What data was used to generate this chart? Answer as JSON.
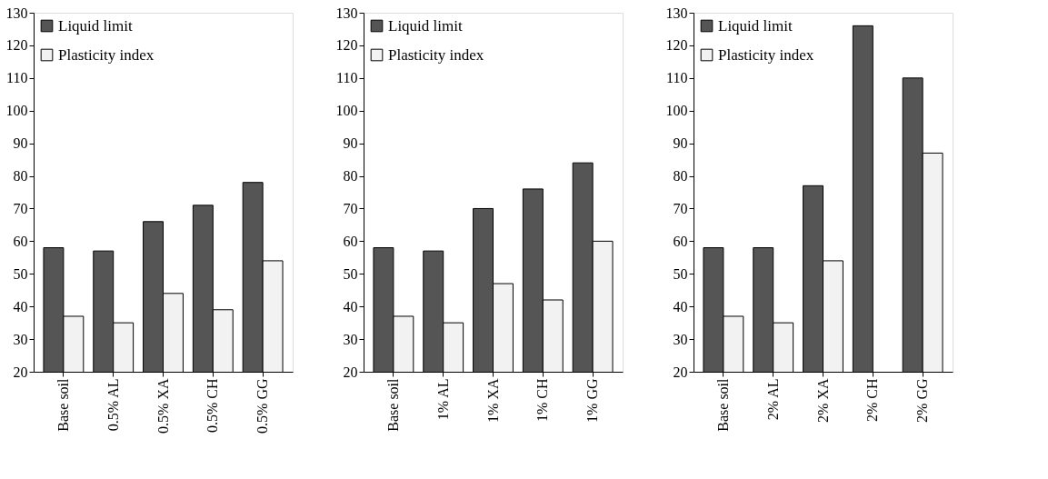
{
  "chart_data": [
    {
      "type": "bar",
      "categories": [
        "Base soil",
        "0.5% AL",
        "0.5% XA",
        "0.5% CH",
        "0.5% GG"
      ],
      "ylim": [
        20,
        130
      ],
      "yticks": [
        20,
        30,
        40,
        50,
        60,
        70,
        80,
        90,
        100,
        110,
        120,
        130
      ],
      "grid": false,
      "legend": "top left",
      "series": [
        {
          "name": "Liquid limit",
          "color": "#555555",
          "values": [
            58,
            57,
            66,
            71,
            78
          ]
        },
        {
          "name": "Plasticity index",
          "color": "#f2f2f2",
          "values": [
            37,
            35,
            44,
            39,
            54
          ]
        }
      ]
    },
    {
      "type": "bar",
      "categories": [
        "Base soil",
        "1% AL",
        "1% XA",
        "1% CH",
        "1% GG"
      ],
      "ylim": [
        20,
        130
      ],
      "yticks": [
        20,
        30,
        40,
        50,
        60,
        70,
        80,
        90,
        100,
        110,
        120,
        130
      ],
      "grid": false,
      "legend": "top left",
      "series": [
        {
          "name": "Liquid limit",
          "color": "#555555",
          "values": [
            58,
            57,
            70,
            76,
            84
          ]
        },
        {
          "name": "Plasticity index",
          "color": "#f2f2f2",
          "values": [
            37,
            35,
            47,
            42,
            60
          ]
        }
      ]
    },
    {
      "type": "bar",
      "categories": [
        "Base soil",
        "2% AL",
        "2% XA",
        "2% CH",
        "2% GG"
      ],
      "ylim": [
        20,
        130
      ],
      "yticks": [
        20,
        30,
        40,
        50,
        60,
        70,
        80,
        90,
        100,
        110,
        120,
        130
      ],
      "grid": false,
      "legend": "top left",
      "series": [
        {
          "name": "Liquid limit",
          "color": "#555555",
          "values": [
            58,
            58,
            77,
            126,
            110
          ]
        },
        {
          "name": "Plasticity index",
          "color": "#f2f2f2",
          "values": [
            37,
            35,
            54,
            null,
            87
          ]
        }
      ]
    }
  ]
}
